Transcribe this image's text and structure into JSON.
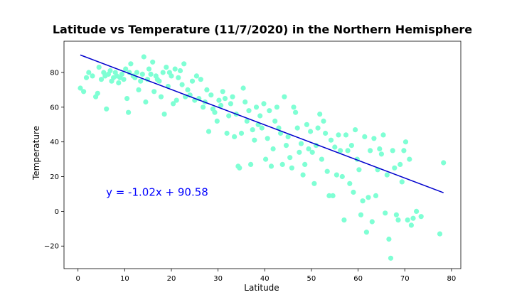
{
  "chart_data": {
    "type": "scatter",
    "title": "Latitude vs Temperature (11/7/2020) in the Northern Hemisphere",
    "xlabel": "Latitude",
    "ylabel": "Temperature",
    "xlim": [
      -3,
      82
    ],
    "ylim": [
      -33,
      98
    ],
    "xticks": [
      0,
      10,
      20,
      30,
      40,
      50,
      60,
      70,
      80
    ],
    "yticks": [
      -20,
      0,
      20,
      40,
      60,
      80
    ],
    "xtick_labels": [
      "0",
      "10",
      "20",
      "30",
      "40",
      "50",
      "60",
      "70",
      "80"
    ],
    "ytick_labels": [
      "−20",
      "0",
      "20",
      "40",
      "60",
      "80"
    ],
    "grid": false,
    "marker_color": "#7fffd4",
    "line_color": "#0000cd",
    "regression": {
      "slope": -1.02,
      "intercept": 90.58,
      "x_range": [
        0.5,
        78.3
      ]
    },
    "annotation": {
      "text": "y = -1.02x + 90.58",
      "x": 6,
      "y": 9,
      "color": "#0000ff"
    },
    "points": [
      [
        0.5,
        71
      ],
      [
        1.2,
        69
      ],
      [
        1.8,
        77
      ],
      [
        2.3,
        80
      ],
      [
        3.1,
        78
      ],
      [
        3.8,
        66
      ],
      [
        4.2,
        68
      ],
      [
        4.5,
        83
      ],
      [
        5.0,
        76
      ],
      [
        5.5,
        80
      ],
      [
        5.8,
        78
      ],
      [
        6.1,
        59
      ],
      [
        6.5,
        79
      ],
      [
        6.9,
        81
      ],
      [
        7.2,
        75
      ],
      [
        7.6,
        77
      ],
      [
        8.0,
        80
      ],
      [
        8.3,
        78
      ],
      [
        8.7,
        74
      ],
      [
        9.0,
        77
      ],
      [
        9.4,
        79
      ],
      [
        9.8,
        76
      ],
      [
        10.2,
        82
      ],
      [
        10.5,
        65
      ],
      [
        10.8,
        57
      ],
      [
        11.0,
        80
      ],
      [
        11.3,
        85
      ],
      [
        11.8,
        78
      ],
      [
        12.2,
        77
      ],
      [
        12.6,
        80
      ],
      [
        13.0,
        70
      ],
      [
        13.4,
        75
      ],
      [
        13.8,
        79
      ],
      [
        14.1,
        89
      ],
      [
        14.5,
        63
      ],
      [
        14.9,
        76
      ],
      [
        15.2,
        82
      ],
      [
        15.6,
        79
      ],
      [
        16.0,
        86
      ],
      [
        16.3,
        69
      ],
      [
        16.7,
        78
      ],
      [
        17.0,
        76
      ],
      [
        17.4,
        75
      ],
      [
        17.8,
        66
      ],
      [
        18.2,
        80
      ],
      [
        18.5,
        56
      ],
      [
        18.9,
        83
      ],
      [
        19.3,
        72
      ],
      [
        19.6,
        80
      ],
      [
        20.0,
        78
      ],
      [
        20.4,
        62
      ],
      [
        20.8,
        82
      ],
      [
        21.1,
        64
      ],
      [
        21.5,
        77
      ],
      [
        21.9,
        81
      ],
      [
        22.3,
        73
      ],
      [
        22.7,
        85
      ],
      [
        23.0,
        66
      ],
      [
        23.5,
        70
      ],
      [
        24.0,
        67
      ],
      [
        24.5,
        75
      ],
      [
        25.0,
        64
      ],
      [
        25.4,
        78
      ],
      [
        25.9,
        65
      ],
      [
        26.3,
        76
      ],
      [
        26.8,
        60
      ],
      [
        27.2,
        63
      ],
      [
        27.6,
        70
      ],
      [
        28.0,
        46
      ],
      [
        28.5,
        67
      ],
      [
        28.9,
        59
      ],
      [
        29.3,
        57
      ],
      [
        29.8,
        52
      ],
      [
        30.2,
        64
      ],
      [
        30.6,
        61
      ],
      [
        31.0,
        69
      ],
      [
        31.5,
        65
      ],
      [
        31.9,
        45
      ],
      [
        32.3,
        55
      ],
      [
        32.7,
        62
      ],
      [
        33.1,
        66
      ],
      [
        33.5,
        43
      ],
      [
        33.9,
        56
      ],
      [
        34.3,
        26
      ],
      [
        34.6,
        25
      ],
      [
        35.0,
        45
      ],
      [
        35.4,
        71
      ],
      [
        35.8,
        63
      ],
      [
        36.2,
        52
      ],
      [
        36.6,
        58
      ],
      [
        37.0,
        27
      ],
      [
        37.4,
        47
      ],
      [
        37.8,
        41
      ],
      [
        38.2,
        60
      ],
      [
        38.6,
        50
      ],
      [
        39.0,
        55
      ],
      [
        39.4,
        48
      ],
      [
        39.8,
        62
      ],
      [
        40.2,
        30
      ],
      [
        40.6,
        42
      ],
      [
        41.0,
        58
      ],
      [
        41.4,
        26
      ],
      [
        41.8,
        36
      ],
      [
        42.2,
        52
      ],
      [
        42.6,
        60
      ],
      [
        43.0,
        48
      ],
      [
        43.4,
        45
      ],
      [
        43.8,
        27
      ],
      [
        44.2,
        66
      ],
      [
        44.6,
        38
      ],
      [
        45.0,
        43
      ],
      [
        45.4,
        31
      ],
      [
        45.8,
        25
      ],
      [
        46.2,
        60
      ],
      [
        46.6,
        57
      ],
      [
        47.0,
        48
      ],
      [
        47.4,
        34
      ],
      [
        47.8,
        39
      ],
      [
        48.2,
        21
      ],
      [
        48.6,
        27
      ],
      [
        49.0,
        50
      ],
      [
        49.4,
        36
      ],
      [
        49.8,
        46
      ],
      [
        50.2,
        34
      ],
      [
        50.6,
        16
      ],
      [
        51.0,
        38
      ],
      [
        51.4,
        48
      ],
      [
        51.8,
        56
      ],
      [
        52.2,
        30
      ],
      [
        52.6,
        52
      ],
      [
        53.0,
        45
      ],
      [
        53.4,
        23
      ],
      [
        53.8,
        9
      ],
      [
        54.2,
        41
      ],
      [
        54.6,
        9
      ],
      [
        55.0,
        37
      ],
      [
        55.4,
        21
      ],
      [
        55.8,
        44
      ],
      [
        56.2,
        35
      ],
      [
        56.6,
        20
      ],
      [
        57.0,
        -5
      ],
      [
        57.4,
        44
      ],
      [
        57.8,
        35
      ],
      [
        58.2,
        16
      ],
      [
        58.6,
        38
      ],
      [
        59.0,
        11
      ],
      [
        59.4,
        47
      ],
      [
        59.8,
        30
      ],
      [
        60.2,
        24
      ],
      [
        60.6,
        -2
      ],
      [
        61.0,
        6
      ],
      [
        61.4,
        43
      ],
      [
        61.8,
        -12
      ],
      [
        62.2,
        8
      ],
      [
        62.6,
        35
      ],
      [
        63.0,
        -6
      ],
      [
        63.4,
        42
      ],
      [
        63.8,
        9
      ],
      [
        64.2,
        24
      ],
      [
        64.6,
        36
      ],
      [
        65.0,
        33
      ],
      [
        65.4,
        44
      ],
      [
        65.8,
        -1
      ],
      [
        66.2,
        21
      ],
      [
        66.6,
        -16
      ],
      [
        67.0,
        -27
      ],
      [
        67.4,
        35
      ],
      [
        67.8,
        25
      ],
      [
        68.2,
        -2
      ],
      [
        68.6,
        -5
      ],
      [
        69.0,
        27
      ],
      [
        69.4,
        17
      ],
      [
        69.8,
        35
      ],
      [
        70.2,
        40
      ],
      [
        70.6,
        -5
      ],
      [
        71.0,
        30
      ],
      [
        71.4,
        -8
      ],
      [
        71.8,
        -4
      ],
      [
        72.5,
        0
      ],
      [
        73.5,
        -3
      ],
      [
        77.5,
        -13
      ],
      [
        78.3,
        28
      ]
    ]
  }
}
